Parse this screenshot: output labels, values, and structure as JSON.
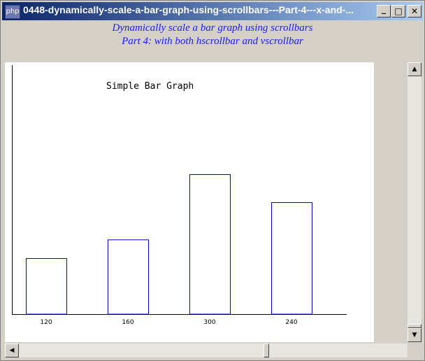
{
  "window": {
    "app_icon_label": "php",
    "title": "0448-dynamically-scale-a-bar-graph-using-scrollbars---Part-4---x-and-...",
    "minimize_glyph": "_",
    "maximize_glyph": "□",
    "close_glyph": "✕"
  },
  "heading": {
    "line1": "Dynamically scale a bar graph using scrollbars",
    "line2": "Part 4: with both hscrollbar and vscrollbar"
  },
  "scrollbars": {
    "up_arrow": "▲",
    "down_arrow": "▼",
    "left_arrow": "◀",
    "right_arrow": "▶"
  },
  "colors": {
    "bar_stroke": "#0000cc",
    "heading_text": "#1a1aff"
  },
  "chart_data": {
    "type": "bar",
    "title": "Simple Bar Graph",
    "categories": [
      "120",
      "160",
      "300",
      "240"
    ],
    "values": [
      120,
      160,
      300,
      240
    ],
    "xlabel": "",
    "ylabel": "",
    "ylim": [
      0,
      300
    ],
    "grid": false,
    "bar_fill": "none"
  }
}
